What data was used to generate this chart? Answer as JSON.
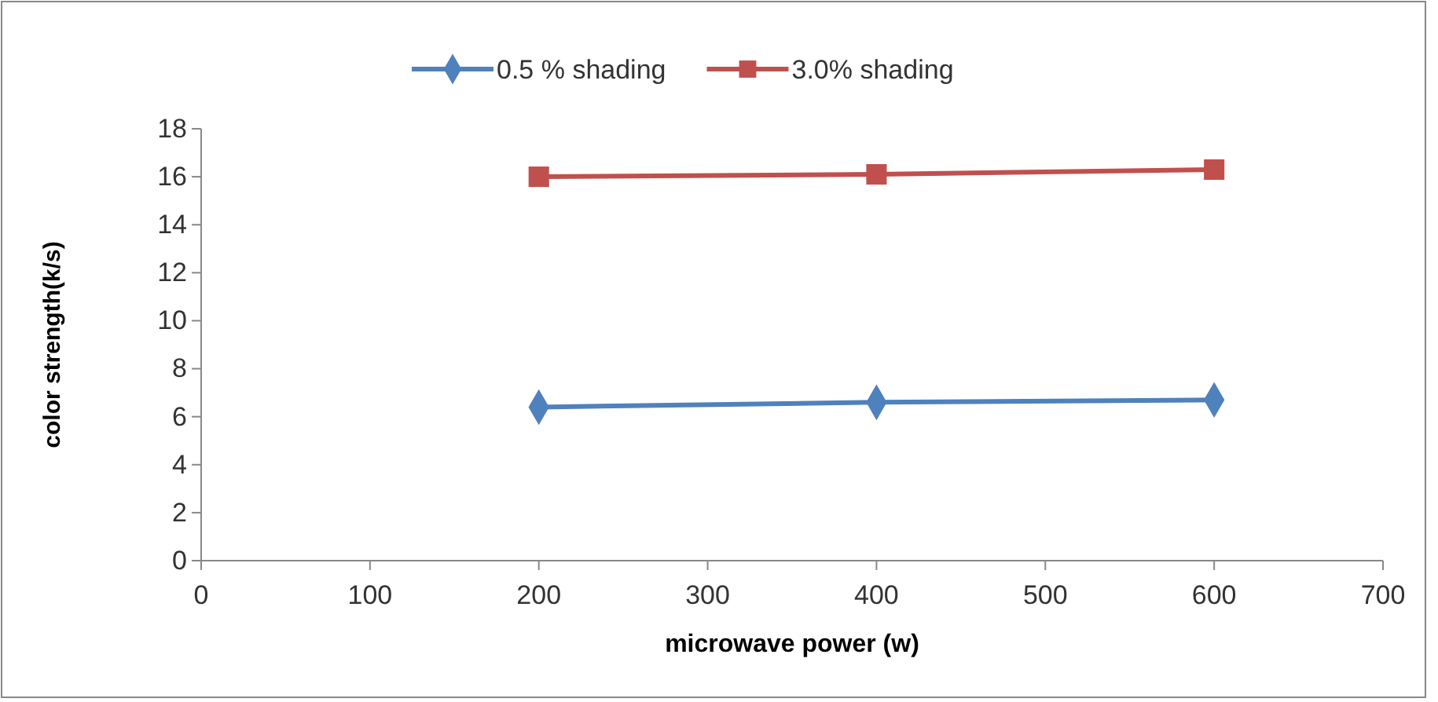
{
  "chart_data": {
    "type": "line",
    "xlabel": "microwave power (w)",
    "ylabel": "color strength(k/s)",
    "xlim": [
      0,
      700
    ],
    "xticks": [
      0,
      100,
      200,
      300,
      400,
      500,
      600,
      700
    ],
    "ylim": [
      0,
      18
    ],
    "yticks": [
      0,
      2,
      4,
      6,
      8,
      10,
      12,
      14,
      16,
      18
    ],
    "grid": false,
    "legend": "top",
    "line_style": "solid",
    "series": [
      {
        "name": "0.5 % shading",
        "color": "#4f81bd",
        "marker": "diamond",
        "x": [
          200,
          400,
          600
        ],
        "values": [
          6.4,
          6.6,
          6.7
        ]
      },
      {
        "name": "3.0% shading",
        "color": "#c0504d",
        "marker": "square",
        "x": [
          200,
          400,
          600
        ],
        "values": [
          16.0,
          16.1,
          16.3
        ]
      }
    ]
  }
}
